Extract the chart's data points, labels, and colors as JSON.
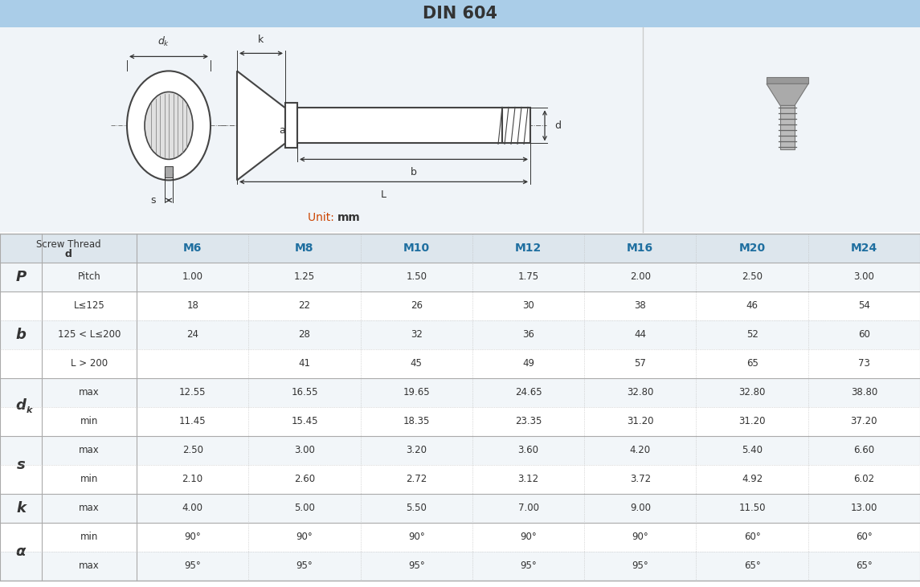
{
  "title": "DIN 604",
  "title_bg": "#aacde8",
  "title_text_color": "#333333",
  "diag_bg": "#f0f4f8",
  "table_header_bg": "#dde6ed",
  "row_bg_light": "#f2f6f9",
  "row_bg_white": "#ffffff",
  "col_header_color": "#1f6fa0",
  "text_color": "#333333",
  "grid_color": "#bbbbbb",
  "unit_text": "Unit: mm",
  "unit_color_normal": "#e05000",
  "unit_color_bold": "#333333",
  "columns": [
    "M6",
    "M8",
    "M10",
    "M12",
    "M16",
    "M20",
    "M24"
  ],
  "row_groups": [
    {
      "label": "P",
      "rows": [
        {
          "sub": "Pitch",
          "values": [
            "1.00",
            "1.25",
            "1.50",
            "1.75",
            "2.00",
            "2.50",
            "3.00"
          ]
        }
      ]
    },
    {
      "label": "b",
      "rows": [
        {
          "sub": "L≤125",
          "values": [
            "18",
            "22",
            "26",
            "30",
            "38",
            "46",
            "54"
          ]
        },
        {
          "sub": "125 < L≤200",
          "values": [
            "24",
            "28",
            "32",
            "36",
            "44",
            "52",
            "60"
          ]
        },
        {
          "sub": "L > 200",
          "values": [
            "",
            "41",
            "45",
            "49",
            "57",
            "65",
            "73"
          ]
        }
      ]
    },
    {
      "label": "d_k",
      "rows": [
        {
          "sub": "max",
          "values": [
            "12.55",
            "16.55",
            "19.65",
            "24.65",
            "32.80",
            "32.80",
            "38.80"
          ]
        },
        {
          "sub": "min",
          "values": [
            "11.45",
            "15.45",
            "18.35",
            "23.35",
            "31.20",
            "31.20",
            "37.20"
          ]
        }
      ]
    },
    {
      "label": "s",
      "rows": [
        {
          "sub": "max",
          "values": [
            "2.50",
            "3.00",
            "3.20",
            "3.60",
            "4.20",
            "5.40",
            "6.60"
          ]
        },
        {
          "sub": "min",
          "values": [
            "2.10",
            "2.60",
            "2.72",
            "3.12",
            "3.72",
            "4.92",
            "6.02"
          ]
        }
      ]
    },
    {
      "label": "k",
      "rows": [
        {
          "sub": "max",
          "values": [
            "4.00",
            "5.00",
            "5.50",
            "7.00",
            "9.00",
            "11.50",
            "13.00"
          ]
        }
      ]
    },
    {
      "label": "α",
      "rows": [
        {
          "sub": "min",
          "values": [
            "90°",
            "90°",
            "90°",
            "90°",
            "90°",
            "60°",
            "60°"
          ]
        },
        {
          "sub": "max",
          "values": [
            "95°",
            "95°",
            "95°",
            "95°",
            "95°",
            "65°",
            "65°"
          ]
        }
      ]
    }
  ]
}
